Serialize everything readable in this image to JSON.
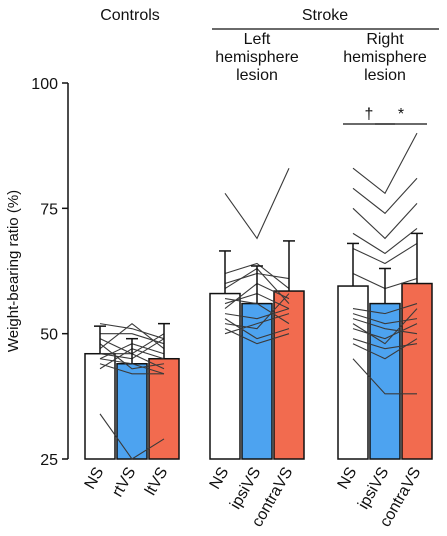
{
  "chart_data": {
    "type": "bar",
    "title": "",
    "ylabel": "Weight-bearing ratio (%)",
    "ylim": [
      25,
      100
    ],
    "yticks": [
      25,
      50,
      75,
      100
    ],
    "colors": {
      "NS": "#ffffff",
      "ipsi": "#4da3f0",
      "contra": "#f26b4f"
    },
    "header": {
      "controls": "Controls",
      "stroke": "Stroke"
    },
    "groups": [
      {
        "name": "Controls",
        "label_lines": [],
        "categories": [
          "NS",
          "rtVS",
          "ltVS"
        ],
        "means": [
          46,
          44,
          45
        ],
        "sd": [
          5.5,
          5.0,
          7.0
        ],
        "subjects": [
          [
            43,
            47,
            45
          ],
          [
            45,
            48,
            46
          ],
          [
            46,
            45,
            49
          ],
          [
            47,
            52,
            47
          ],
          [
            49,
            46,
            43
          ],
          [
            50,
            50,
            48
          ],
          [
            52,
            51,
            49
          ],
          [
            48,
            43,
            44
          ],
          [
            44,
            42,
            42
          ],
          [
            46,
            46,
            50
          ],
          [
            34,
            25,
            29
          ],
          [
            45,
            44,
            42
          ]
        ]
      },
      {
        "name": "Left hemisphere lesion",
        "label_lines": [
          "Left",
          "hemisphere",
          "lesion"
        ],
        "categories": [
          "NS",
          "ipsiVS",
          "contraVS"
        ],
        "means": [
          58,
          56,
          58.5
        ],
        "sd": [
          8.5,
          7.5,
          10.0
        ],
        "subjects": [
          [
            78,
            69,
            83
          ],
          [
            60,
            62,
            61
          ],
          [
            62,
            64,
            59
          ],
          [
            56,
            58,
            55
          ],
          [
            57,
            56,
            52
          ],
          [
            54,
            53,
            55
          ],
          [
            52,
            51,
            58
          ],
          [
            53,
            49,
            51
          ],
          [
            51,
            48,
            50
          ],
          [
            55,
            60,
            57
          ],
          [
            59,
            63,
            56
          ],
          [
            50,
            52,
            54
          ]
        ]
      },
      {
        "name": "Right hemisphere lesion",
        "label_lines": [
          "Right",
          "hemisphere",
          "lesion"
        ],
        "categories": [
          "NS",
          "ipsiVS",
          "contraVS"
        ],
        "means": [
          59.5,
          56,
          60
        ],
        "sd": [
          8.5,
          7.0,
          10.0
        ],
        "subjects": [
          [
            83,
            78,
            90
          ],
          [
            79,
            74,
            81
          ],
          [
            75,
            69,
            76
          ],
          [
            70,
            66,
            71
          ],
          [
            67,
            64,
            68
          ],
          [
            62,
            59,
            61
          ],
          [
            55,
            54,
            56
          ],
          [
            54,
            52,
            53
          ],
          [
            53,
            51,
            50
          ],
          [
            52,
            48,
            55
          ],
          [
            51,
            49,
            52
          ],
          [
            49,
            47,
            48
          ],
          [
            48,
            45,
            49
          ],
          [
            45,
            38,
            38
          ]
        ]
      }
    ],
    "significance": [
      {
        "group": 2,
        "from": 0,
        "to": 1,
        "label": "†"
      },
      {
        "group": 2,
        "from": 1,
        "to": 2,
        "label": "*"
      }
    ]
  }
}
